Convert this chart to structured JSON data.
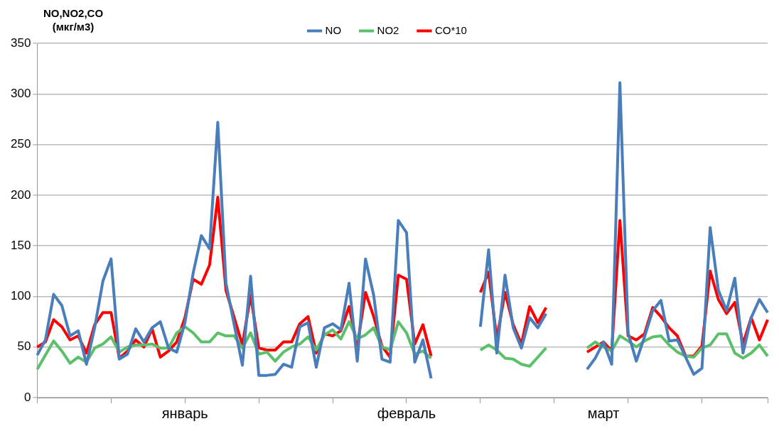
{
  "chart_data": {
    "type": "line",
    "ylabel": "NO,NO2,CO\n(мкг/м3)",
    "categories": [
      null,
      null,
      null,
      null,
      null,
      null,
      null,
      null,
      null,
      null,
      null,
      null,
      null,
      null,
      null,
      null,
      null,
      null,
      "январь",
      null,
      null,
      null,
      null,
      null,
      null,
      null,
      null,
      null,
      null,
      null,
      null,
      null,
      null,
      null,
      null,
      null,
      null,
      null,
      null,
      null,
      null,
      null,
      null,
      null,
      null,
      "февраль",
      null,
      null,
      null,
      null,
      null,
      null,
      null,
      null,
      null,
      null,
      null,
      null,
      null,
      null,
      null,
      null,
      null,
      null,
      null,
      null,
      null,
      null,
      null,
      "март",
      null,
      null,
      null,
      null,
      null,
      null,
      null,
      null,
      null,
      null,
      null,
      null,
      null,
      null,
      null,
      null,
      null,
      null,
      null,
      null
    ],
    "series": [
      {
        "name": "NO",
        "color": "#4a7ebb",
        "values": [
          42,
          57,
          102,
          91,
          61,
          66,
          33,
          69,
          115,
          137,
          38,
          43,
          68,
          55,
          69,
          75,
          49,
          45,
          74,
          123,
          160,
          147,
          272,
          113,
          72,
          32,
          120,
          22,
          22,
          23,
          33,
          30,
          70,
          74,
          30,
          69,
          73,
          67,
          113,
          36,
          137,
          101,
          38,
          35,
          175,
          163,
          35,
          57,
          19,
          null,
          null,
          null,
          null,
          null,
          70,
          146,
          44,
          121,
          69,
          49,
          79,
          69,
          83,
          null,
          null,
          null,
          null,
          28,
          39,
          55,
          33,
          311,
          64,
          36,
          60,
          86,
          96,
          56,
          57,
          40,
          23,
          29,
          168,
          106,
          86,
          118,
          44,
          79,
          97,
          84
        ]
      },
      {
        "name": "NO2",
        "color": "#5cbf6a",
        "values": [
          28,
          42,
          56,
          46,
          34,
          40,
          35,
          49,
          53,
          60,
          45,
          50,
          52,
          52,
          53,
          49,
          49,
          64,
          70,
          64,
          55,
          55,
          64,
          61,
          61,
          49,
          64,
          43,
          45,
          36,
          45,
          50,
          53,
          60,
          47,
          62,
          67,
          58,
          75,
          58,
          62,
          69,
          50,
          47,
          75,
          64,
          43,
          46,
          39,
          null,
          null,
          null,
          null,
          null,
          47,
          52,
          47,
          39,
          38,
          33,
          31,
          40,
          49,
          null,
          null,
          null,
          null,
          49,
          55,
          50,
          46,
          61,
          56,
          50,
          56,
          60,
          61,
          52,
          45,
          41,
          40,
          49,
          52,
          63,
          63,
          44,
          39,
          44,
          52,
          41
        ]
      },
      {
        "name": "CO*10",
        "color": "#ff0000",
        "values": [
          50,
          55,
          77,
          70,
          57,
          61,
          44,
          72,
          84,
          84,
          39,
          46,
          57,
          50,
          68,
          40,
          46,
          55,
          79,
          117,
          112,
          131,
          198,
          106,
          79,
          52,
          101,
          49,
          47,
          47,
          55,
          55,
          73,
          80,
          44,
          63,
          61,
          66,
          90,
          51,
          104,
          80,
          51,
          40,
          121,
          117,
          53,
          72,
          41,
          null,
          null,
          null,
          null,
          null,
          104,
          124,
          58,
          104,
          72,
          53,
          90,
          74,
          89,
          null,
          null,
          null,
          null,
          45,
          50,
          55,
          46,
          175,
          61,
          57,
          63,
          89,
          80,
          69,
          61,
          41,
          41,
          51,
          125,
          97,
          83,
          94,
          53,
          79,
          57,
          77
        ]
      }
    ],
    "ylim": [
      0,
      350
    ],
    "yticks": [
      0,
      50,
      100,
      150,
      200,
      250,
      300,
      350
    ],
    "grid": "y",
    "legend": "top",
    "marker": "none",
    "line_style": "solid"
  }
}
